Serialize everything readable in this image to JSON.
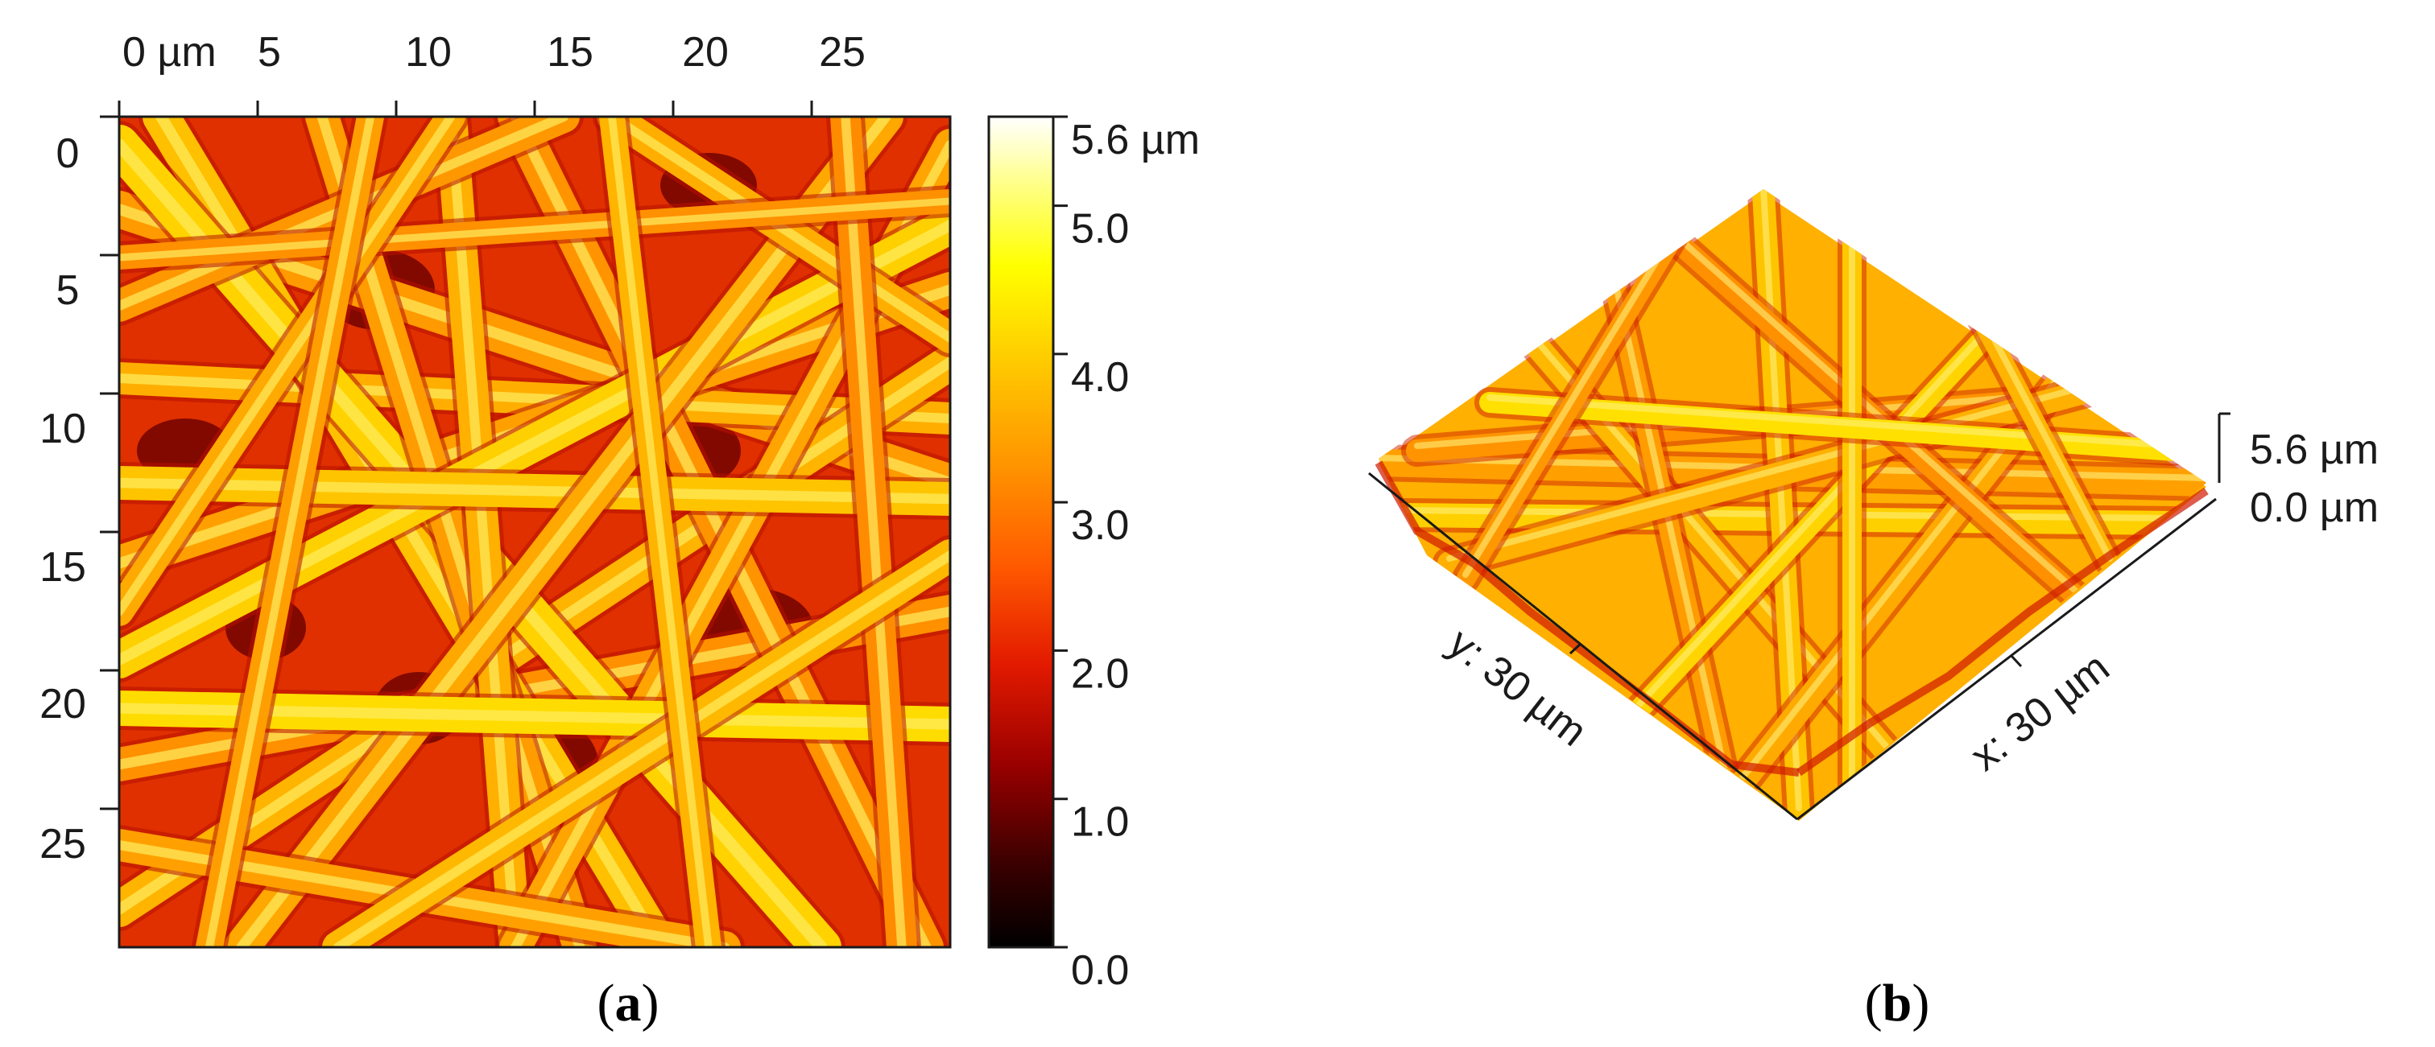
{
  "panel_a": {
    "caption_open": "(",
    "caption_letter": "a",
    "caption_close": ")",
    "x_ticks": [
      "0 µm",
      "5",
      "10",
      "15",
      "20",
      "25"
    ],
    "y_ticks": [
      "0",
      "5",
      "10",
      "15",
      "20",
      "25"
    ],
    "colorbar": {
      "ticks": [
        "5.6 µm",
        "5.0",
        "4.0",
        "3.0",
        "2.0",
        "1.0",
        "0.0"
      ],
      "tick_values": [
        5.6,
        5.0,
        4.0,
        3.0,
        2.0,
        1.0,
        0.0
      ],
      "range": [
        0.0,
        5.6
      ],
      "colormap": [
        "#000000",
        "#3a0000",
        "#9a0000",
        "#e21a00",
        "#ff5a00",
        "#ff9400",
        "#ffc800",
        "#ffff00",
        "#ffff8a",
        "#ffffff"
      ]
    }
  },
  "panel_b": {
    "caption_open": "(",
    "caption_letter": "b",
    "caption_close": ")",
    "x_axis_label": "x: 30 µm",
    "y_axis_label": "y: 30 µm",
    "z_max_label": "5.6 µm",
    "z_min_label": "0.0 µm"
  },
  "colors": {
    "dark_red": "#c80000",
    "orange": "#ff8a00",
    "yellow": "#ffe400",
    "axis": "#1a1a1a"
  }
}
